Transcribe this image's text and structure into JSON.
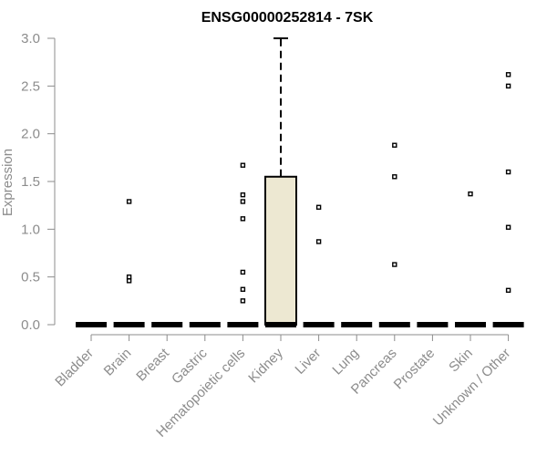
{
  "chart_data": {
    "type": "box",
    "title": "ENSG00000252814 - 7SK",
    "xlabel": "",
    "ylabel": "Expression",
    "ylim": [
      0,
      3.0
    ],
    "y_ticks": [
      "0.0",
      "0.5",
      "1.0",
      "1.5",
      "2.0",
      "2.5",
      "3.0"
    ],
    "grid": false,
    "box_color": "#ede8d2",
    "categories": [
      "Bladder",
      "Brain",
      "Breast",
      "Gastric",
      "Hematopoietic cells",
      "Kidney",
      "Liver",
      "Lung",
      "Pancreas",
      "Prostate",
      "Skin",
      "Unknown / Other"
    ],
    "boxes": [
      {
        "q1": 0,
        "median": 0,
        "q3": 0,
        "whisker_low": 0,
        "whisker_high": 0,
        "outliers": []
      },
      {
        "q1": 0,
        "median": 0,
        "q3": 0,
        "whisker_low": 0,
        "whisker_high": 0,
        "outliers": [
          1.29,
          0.5,
          0.46
        ]
      },
      {
        "q1": 0,
        "median": 0,
        "q3": 0,
        "whisker_low": 0,
        "whisker_high": 0,
        "outliers": []
      },
      {
        "q1": 0,
        "median": 0,
        "q3": 0,
        "whisker_low": 0,
        "whisker_high": 0,
        "outliers": []
      },
      {
        "q1": 0,
        "median": 0,
        "q3": 0,
        "whisker_low": 0,
        "whisker_high": 0,
        "outliers": [
          1.67,
          1.36,
          1.29,
          1.11,
          0.55,
          0.37,
          0.25
        ]
      },
      {
        "q1": 0,
        "median": 0,
        "q3": 1.55,
        "whisker_low": 0,
        "whisker_high": 3.0,
        "outliers": []
      },
      {
        "q1": 0,
        "median": 0,
        "q3": 0,
        "whisker_low": 0,
        "whisker_high": 0,
        "outliers": [
          1.23,
          0.87
        ]
      },
      {
        "q1": 0,
        "median": 0,
        "q3": 0,
        "whisker_low": 0,
        "whisker_high": 0,
        "outliers": []
      },
      {
        "q1": 0,
        "median": 0,
        "q3": 0,
        "whisker_low": 0,
        "whisker_high": 0,
        "outliers": [
          1.88,
          1.55,
          0.63
        ]
      },
      {
        "q1": 0,
        "median": 0,
        "q3": 0,
        "whisker_low": 0,
        "whisker_high": 0,
        "outliers": []
      },
      {
        "q1": 0,
        "median": 0,
        "q3": 0,
        "whisker_low": 0,
        "whisker_high": 0,
        "outliers": [
          1.37
        ]
      },
      {
        "q1": 0,
        "median": 0,
        "q3": 0,
        "whisker_low": 0,
        "whisker_high": 0,
        "outliers": [
          2.62,
          2.5,
          1.6,
          1.02,
          0.36
        ]
      }
    ]
  }
}
